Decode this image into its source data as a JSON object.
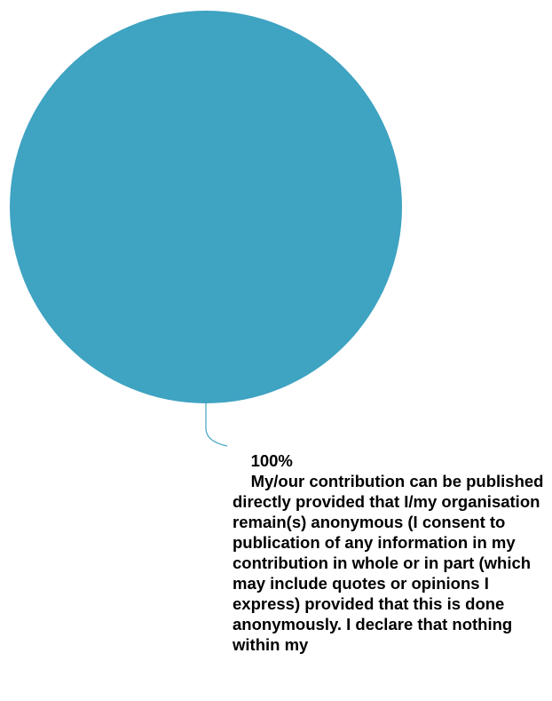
{
  "chart_data": {
    "type": "pie",
    "slices": [
      {
        "label": "My/our contribution can be published directly provided that I/my organisation remain(s) anonymous (I consent to publication of any information in my contribution in whole or in part (which may include quotes or opinions I express) provided that this is done anonymously. I declare that nothing within my",
        "value": 100,
        "percent_text": "100%",
        "color": "#3FA3C2"
      }
    ],
    "leader_line_color": "#3FA3C2"
  }
}
